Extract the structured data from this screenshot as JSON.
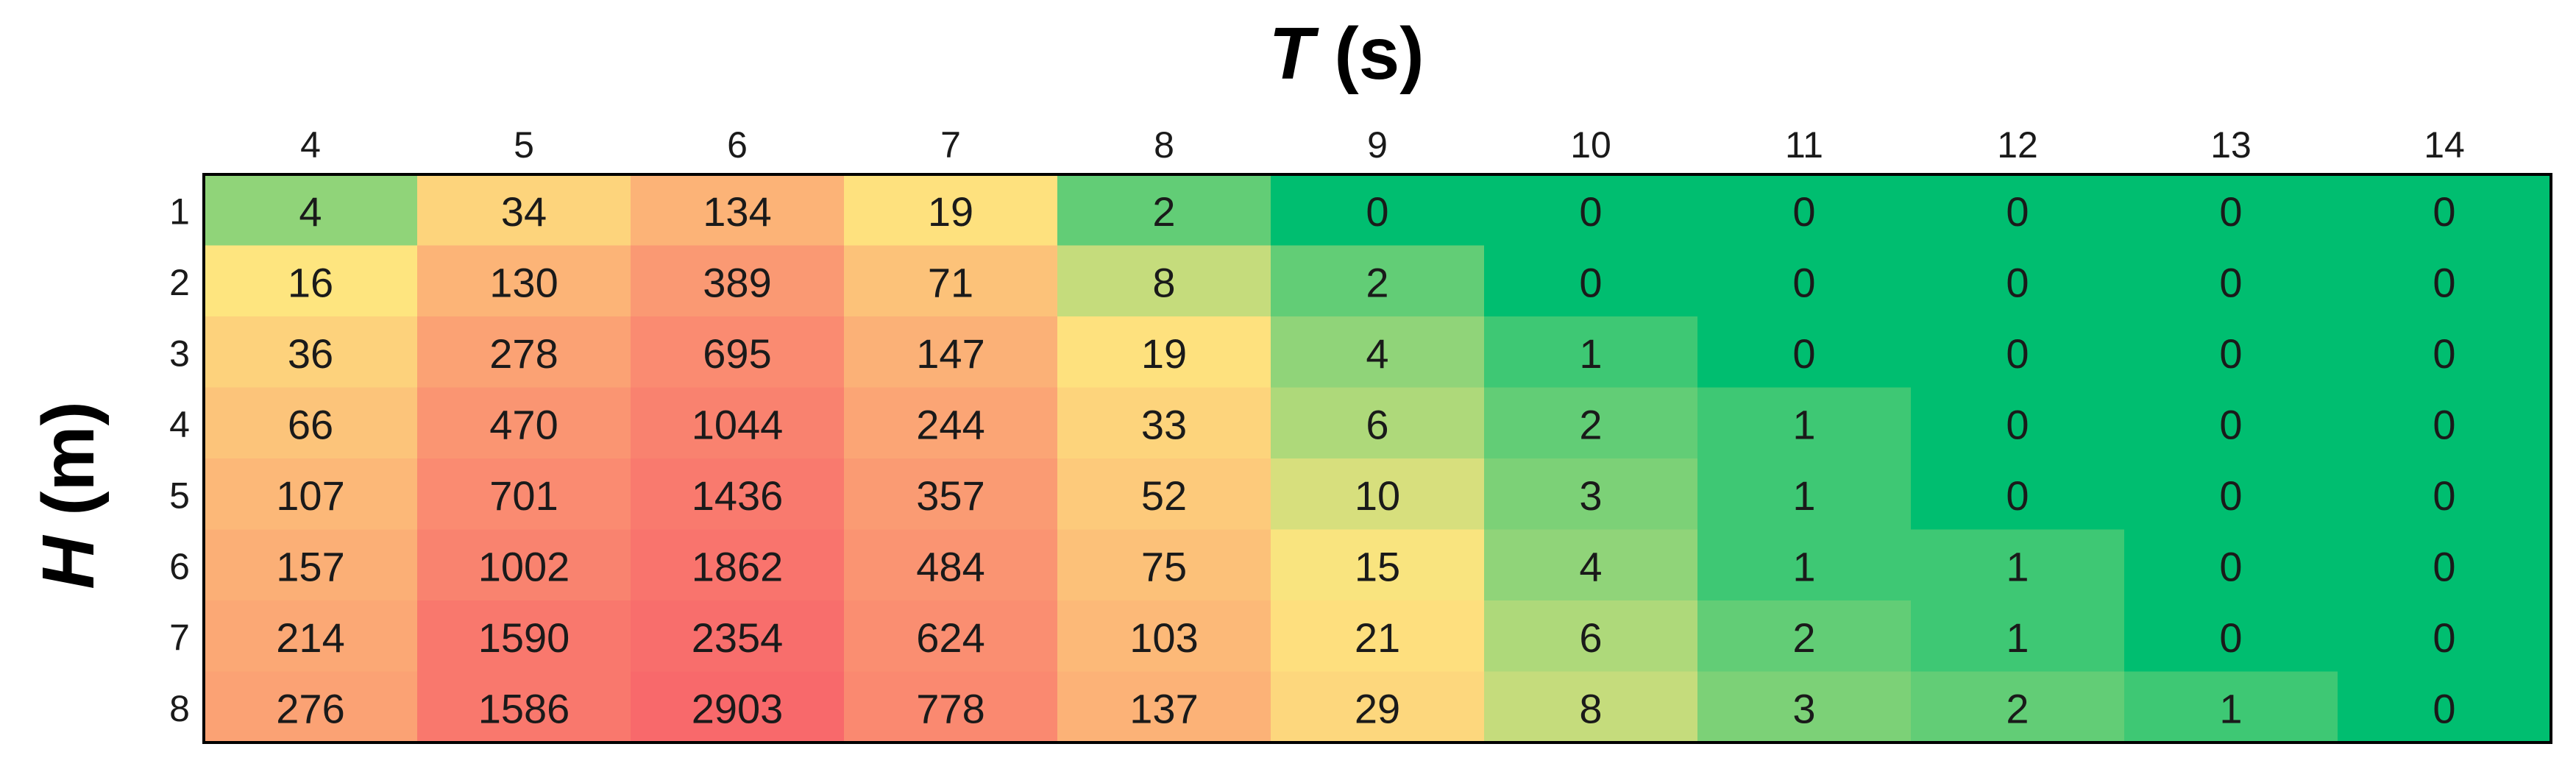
{
  "chart_data": {
    "type": "heatmap",
    "x_axis": {
      "title_symbol": "T",
      "title_unit": " (s)",
      "categories": [
        "4",
        "5",
        "6",
        "7",
        "8",
        "9",
        "10",
        "11",
        "12",
        "13",
        "14"
      ]
    },
    "y_axis": {
      "title_symbol": "H",
      "title_unit": " (m)",
      "categories": [
        "1",
        "2",
        "3",
        "4",
        "5",
        "6",
        "7",
        "8"
      ]
    },
    "values": [
      [
        4,
        34,
        134,
        19,
        2,
        0,
        0,
        0,
        0,
        0,
        0
      ],
      [
        16,
        130,
        389,
        71,
        8,
        2,
        0,
        0,
        0,
        0,
        0
      ],
      [
        36,
        278,
        695,
        147,
        19,
        4,
        1,
        0,
        0,
        0,
        0
      ],
      [
        66,
        470,
        1044,
        244,
        33,
        6,
        2,
        1,
        0,
        0,
        0
      ],
      [
        107,
        701,
        1436,
        357,
        52,
        10,
        3,
        1,
        0,
        0,
        0
      ],
      [
        157,
        1002,
        1862,
        484,
        75,
        15,
        4,
        1,
        1,
        0,
        0
      ],
      [
        214,
        1590,
        2354,
        624,
        103,
        21,
        6,
        2,
        1,
        0,
        0
      ],
      [
        276,
        1586,
        2903,
        778,
        137,
        29,
        8,
        3,
        2,
        1,
        0
      ]
    ],
    "color_scale": {
      "low": "#00BE70",
      "mid": "#FEE57F",
      "high": "#F8696B"
    },
    "grid": false,
    "legend": "none"
  }
}
